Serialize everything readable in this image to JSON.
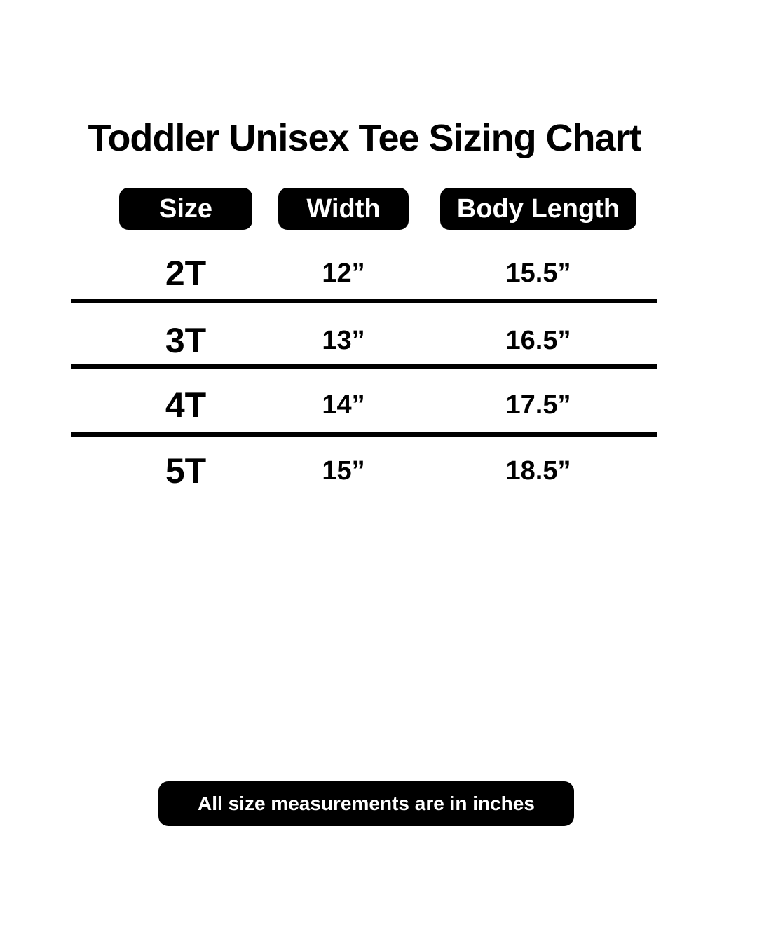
{
  "title": "Toddler Unisex Tee Sizing Chart",
  "table": {
    "headers": [
      {
        "label": "Size"
      },
      {
        "label": "Width"
      },
      {
        "label": "Body Length"
      }
    ],
    "rows": [
      {
        "size": "2T",
        "width": "12”",
        "body_length": "15.5”"
      },
      {
        "size": "3T",
        "width": "13”",
        "body_length": "16.5”"
      },
      {
        "size": "4T",
        "width": "14”",
        "body_length": "17.5”"
      },
      {
        "size": "5T",
        "width": "15”",
        "body_length": "18.5”"
      }
    ]
  },
  "footnote": "All size measurements are in inches",
  "colors": {
    "background": "#ffffff",
    "text": "#000000",
    "pill_background": "#000000",
    "pill_text": "#ffffff",
    "divider": "#000000"
  },
  "chart_data": {
    "type": "table",
    "title": "Toddler Unisex Tee Sizing Chart",
    "columns": [
      "Size",
      "Width",
      "Body Length"
    ],
    "rows": [
      [
        "2T",
        "12”",
        "15.5”"
      ],
      [
        "3T",
        "13”",
        "16.5”"
      ],
      [
        "4T",
        "14”",
        "17.5”"
      ],
      [
        "5T",
        "15”",
        "18.5”"
      ]
    ],
    "units": "inches",
    "footnote": "All size measurements are in inches"
  }
}
